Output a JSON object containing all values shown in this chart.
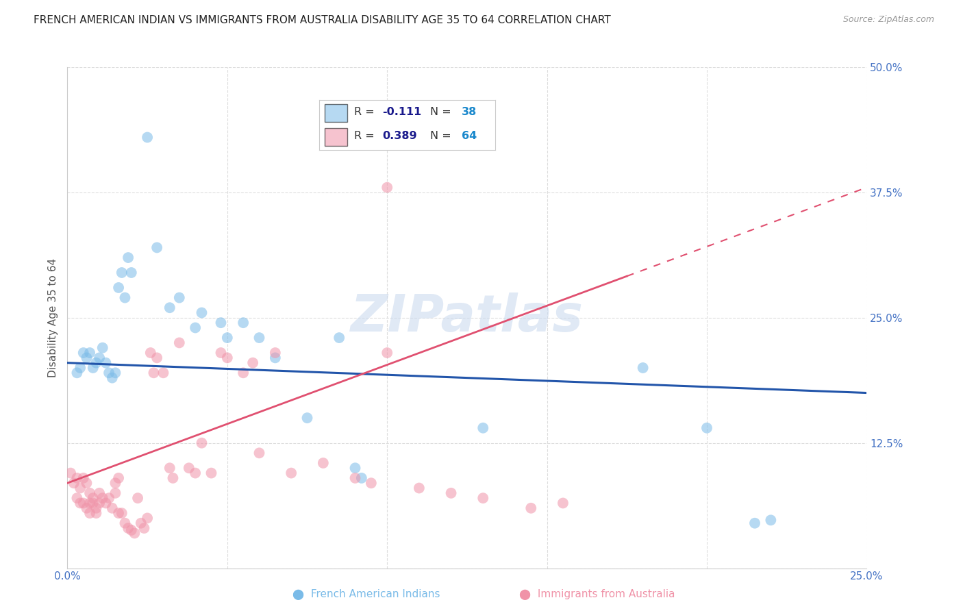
{
  "title": "FRENCH AMERICAN INDIAN VS IMMIGRANTS FROM AUSTRALIA DISABILITY AGE 35 TO 64 CORRELATION CHART",
  "source": "Source: ZipAtlas.com",
  "ylabel": "Disability Age 35 to 64",
  "xlim": [
    0.0,
    0.25
  ],
  "ylim": [
    0.0,
    0.5
  ],
  "xticks": [
    0.0,
    0.05,
    0.1,
    0.15,
    0.2,
    0.25
  ],
  "yticks": [
    0.0,
    0.125,
    0.25,
    0.375,
    0.5
  ],
  "xtick_labels": [
    "0.0%",
    "",
    "",
    "",
    "",
    "25.0%"
  ],
  "ytick_labels": [
    "",
    "12.5%",
    "25.0%",
    "37.5%",
    "50.0%"
  ],
  "background_color": "#ffffff",
  "grid_color": "#dddddd",
  "watermark": "ZIPatlas",
  "series1_color": "#7abbe8",
  "series2_color": "#f093a8",
  "series1_trendline_color": "#2255aa",
  "series2_trendline_color": "#e05070",
  "series1_R": -0.111,
  "series1_N": 38,
  "series2_R": 0.389,
  "series2_N": 64,
  "blue_line_y0": 0.205,
  "blue_line_y1": 0.175,
  "pink_line_y0": 0.085,
  "pink_line_y1": 0.38,
  "series1_points": [
    [
      0.003,
      0.195
    ],
    [
      0.004,
      0.2
    ],
    [
      0.005,
      0.215
    ],
    [
      0.006,
      0.21
    ],
    [
      0.007,
      0.215
    ],
    [
      0.008,
      0.2
    ],
    [
      0.009,
      0.205
    ],
    [
      0.01,
      0.21
    ],
    [
      0.011,
      0.22
    ],
    [
      0.012,
      0.205
    ],
    [
      0.013,
      0.195
    ],
    [
      0.014,
      0.19
    ],
    [
      0.015,
      0.195
    ],
    [
      0.016,
      0.28
    ],
    [
      0.017,
      0.295
    ],
    [
      0.018,
      0.27
    ],
    [
      0.019,
      0.31
    ],
    [
      0.02,
      0.295
    ],
    [
      0.025,
      0.43
    ],
    [
      0.028,
      0.32
    ],
    [
      0.032,
      0.26
    ],
    [
      0.035,
      0.27
    ],
    [
      0.04,
      0.24
    ],
    [
      0.042,
      0.255
    ],
    [
      0.048,
      0.245
    ],
    [
      0.05,
      0.23
    ],
    [
      0.055,
      0.245
    ],
    [
      0.06,
      0.23
    ],
    [
      0.065,
      0.21
    ],
    [
      0.075,
      0.15
    ],
    [
      0.085,
      0.23
    ],
    [
      0.09,
      0.1
    ],
    [
      0.092,
      0.09
    ],
    [
      0.13,
      0.14
    ],
    [
      0.18,
      0.2
    ],
    [
      0.2,
      0.14
    ],
    [
      0.215,
      0.045
    ],
    [
      0.22,
      0.048
    ]
  ],
  "series2_points": [
    [
      0.001,
      0.095
    ],
    [
      0.002,
      0.085
    ],
    [
      0.003,
      0.09
    ],
    [
      0.003,
      0.07
    ],
    [
      0.004,
      0.08
    ],
    [
      0.004,
      0.065
    ],
    [
      0.005,
      0.09
    ],
    [
      0.005,
      0.065
    ],
    [
      0.006,
      0.085
    ],
    [
      0.006,
      0.06
    ],
    [
      0.007,
      0.075
    ],
    [
      0.007,
      0.065
    ],
    [
      0.007,
      0.055
    ],
    [
      0.008,
      0.07
    ],
    [
      0.008,
      0.065
    ],
    [
      0.009,
      0.06
    ],
    [
      0.009,
      0.055
    ],
    [
      0.01,
      0.075
    ],
    [
      0.01,
      0.065
    ],
    [
      0.011,
      0.07
    ],
    [
      0.012,
      0.065
    ],
    [
      0.013,
      0.07
    ],
    [
      0.014,
      0.06
    ],
    [
      0.015,
      0.075
    ],
    [
      0.015,
      0.085
    ],
    [
      0.016,
      0.055
    ],
    [
      0.016,
      0.09
    ],
    [
      0.017,
      0.055
    ],
    [
      0.018,
      0.045
    ],
    [
      0.019,
      0.04
    ],
    [
      0.02,
      0.038
    ],
    [
      0.021,
      0.035
    ],
    [
      0.022,
      0.07
    ],
    [
      0.023,
      0.045
    ],
    [
      0.024,
      0.04
    ],
    [
      0.025,
      0.05
    ],
    [
      0.026,
      0.215
    ],
    [
      0.027,
      0.195
    ],
    [
      0.028,
      0.21
    ],
    [
      0.03,
      0.195
    ],
    [
      0.032,
      0.1
    ],
    [
      0.033,
      0.09
    ],
    [
      0.035,
      0.225
    ],
    [
      0.038,
      0.1
    ],
    [
      0.04,
      0.095
    ],
    [
      0.042,
      0.125
    ],
    [
      0.045,
      0.095
    ],
    [
      0.048,
      0.215
    ],
    [
      0.05,
      0.21
    ],
    [
      0.055,
      0.195
    ],
    [
      0.058,
      0.205
    ],
    [
      0.06,
      0.115
    ],
    [
      0.065,
      0.215
    ],
    [
      0.07,
      0.095
    ],
    [
      0.08,
      0.105
    ],
    [
      0.09,
      0.09
    ],
    [
      0.095,
      0.085
    ],
    [
      0.1,
      0.215
    ],
    [
      0.11,
      0.08
    ],
    [
      0.12,
      0.075
    ],
    [
      0.13,
      0.07
    ],
    [
      0.145,
      0.06
    ],
    [
      0.155,
      0.065
    ],
    [
      0.1,
      0.38
    ]
  ],
  "title_fontsize": 11,
  "axis_tick_color": "#4472c4",
  "ylabel_color": "#555555",
  "legend_text_color": "#333333",
  "legend_r_value_color": "#1a1a8c",
  "legend_n_value_color": "#1a88cc"
}
